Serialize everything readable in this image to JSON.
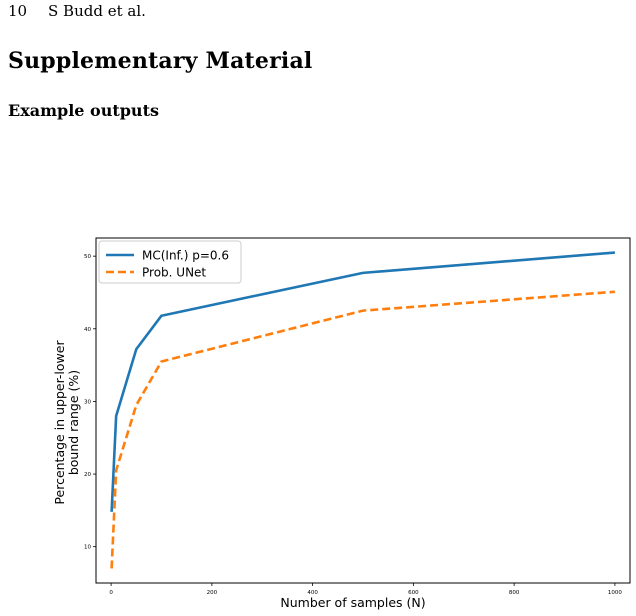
{
  "page": {
    "page_number": "10",
    "running_header": "S Budd et al.",
    "section_title": "Supplementary Material",
    "subsection_title": "Example outputs"
  },
  "chart_data": {
    "type": "line",
    "xlabel": "Number of samples (N)",
    "ylabel_lines": [
      "Percentage in upper-lower",
      "bound range (%)"
    ],
    "xlim": [
      -30,
      1030
    ],
    "ylim": [
      5,
      52.5
    ],
    "xticks": [
      0,
      200,
      400,
      600,
      800,
      1000
    ],
    "yticks": [
      10,
      20,
      30,
      40,
      50
    ],
    "grid": false,
    "legend_position": "upper-left",
    "series": [
      {
        "name": "MC(Inf.) p=0.6",
        "color": "#1f77b4",
        "style": "solid",
        "x": [
          1,
          10,
          50,
          100,
          500,
          1000
        ],
        "y": [
          14.8,
          28.0,
          37.2,
          41.8,
          47.7,
          50.5
        ]
      },
      {
        "name": "Prob. UNet",
        "color": "#ff7f0e",
        "style": "dashed",
        "x": [
          1,
          10,
          50,
          100,
          500,
          1000
        ],
        "y": [
          7.0,
          20.5,
          29.5,
          35.5,
          42.5,
          45.1
        ]
      }
    ]
  }
}
